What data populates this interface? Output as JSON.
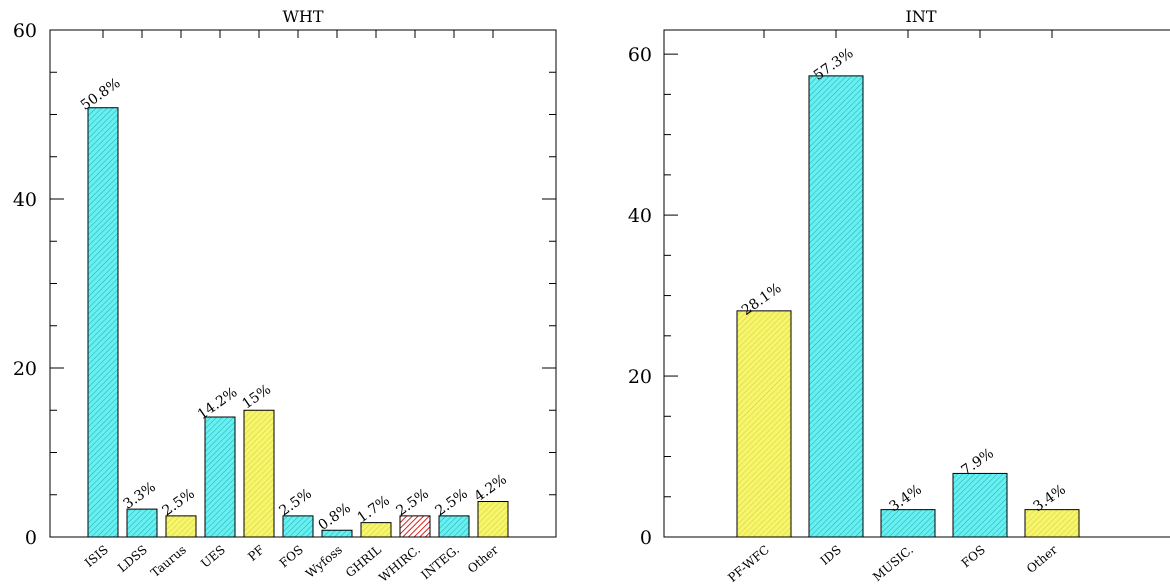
{
  "chart_data": [
    {
      "type": "bar",
      "title": "WHT",
      "categories": [
        "ISIS",
        "LDSS",
        "Taurus",
        "UES",
        "PF",
        "FOS",
        "Wyfoss",
        "GHRIL",
        "WHIRC.",
        "INTEG.",
        "Other"
      ],
      "values": [
        50.8,
        3.3,
        2.5,
        14.2,
        15,
        2.5,
        0.8,
        1.7,
        2.5,
        2.5,
        4.2
      ],
      "value_labels": [
        "50.8%",
        "3.3%",
        "2.5%",
        "14.2%",
        "15%",
        "2.5%",
        "0.8%",
        "1.7%",
        "2.5%",
        "2.5%",
        "4.2%"
      ],
      "colors": [
        "#66f0f0",
        "#66f0f0",
        "#f7f56a",
        "#66f0f0",
        "#f7f56a",
        "#66f0f0",
        "#66f0f0",
        "#f7f56a",
        "#f05050",
        "#66f0f0",
        "#f7f56a"
      ],
      "ylim": [
        0,
        60
      ],
      "yticks": [
        "0",
        "20",
        "40",
        "60"
      ],
      "xlabel": "",
      "ylabel": ""
    },
    {
      "type": "bar",
      "title": "INT",
      "categories": [
        "PF-WFC",
        "IDS",
        "MUSIC.",
        "FOS",
        "Other"
      ],
      "values": [
        28.1,
        57.3,
        3.4,
        7.9,
        3.4
      ],
      "value_labels": [
        "28.1%",
        "57.3%",
        "3.4%",
        "7.9%",
        "3.4%"
      ],
      "colors": [
        "#f7f56a",
        "#66f0f0",
        "#66f0f0",
        "#66f0f0",
        "#f7f56a"
      ],
      "ylim": [
        0,
        63
      ],
      "yticks": [
        "0",
        "20",
        "40",
        "60"
      ],
      "xlabel": "",
      "ylabel": ""
    }
  ]
}
